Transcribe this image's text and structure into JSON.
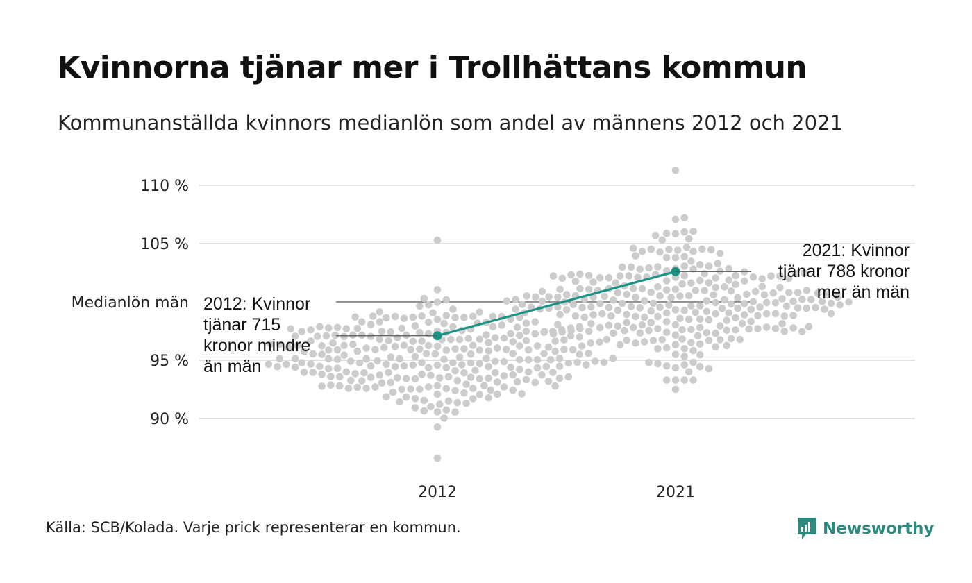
{
  "header": {
    "title": "Kvinnorna tjänar mer i Trollhättans kommun",
    "subtitle": "Kommunanställda kvinnors medianlön som andel av männens 2012 och 2021"
  },
  "footer": {
    "source": "Källa: SCB/Kolada. Varje prick representerar en kommun.",
    "brand": "Newsworthy"
  },
  "colors": {
    "dots": "#cccccc",
    "highlight": "#1a9384",
    "grid": "#e0e0e0",
    "reference": "#555555",
    "brand": "#2c8a7e"
  },
  "chart_data": {
    "type": "scatter",
    "style": "beeswarm",
    "categories": [
      "2012",
      "2021"
    ],
    "y_ticks": [
      {
        "value": 90,
        "label": "90 %"
      },
      {
        "value": 95,
        "label": "95 %"
      },
      {
        "value": 105,
        "label": "105 %"
      },
      {
        "value": 110,
        "label": "110 %"
      }
    ],
    "reference_line": {
      "value": 100,
      "label": "Medianlön män"
    },
    "ylim": [
      86,
      111.5
    ],
    "grid": true,
    "distribution": [
      {
        "category": "2012",
        "count": 290,
        "median": 95.3,
        "sd": 2.3,
        "min": 86.6,
        "max": 105.3
      },
      {
        "category": "2021",
        "count": 290,
        "median": 100.0,
        "sd": 2.6,
        "min": 92.5,
        "max": 111.3
      }
    ],
    "highlight_series": {
      "name": "Trollhättan",
      "values": [
        97.1,
        102.6
      ]
    },
    "annotations": [
      {
        "category": "2012",
        "value": 97.1,
        "lines": [
          "2012: Kvinnor",
          "tjänar 715",
          "kronor mindre",
          "än män"
        ]
      },
      {
        "category": "2021",
        "value": 102.6,
        "lines": [
          "2021: Kvinnor",
          "tjänar 788 kronor",
          "mer än män"
        ]
      }
    ]
  }
}
